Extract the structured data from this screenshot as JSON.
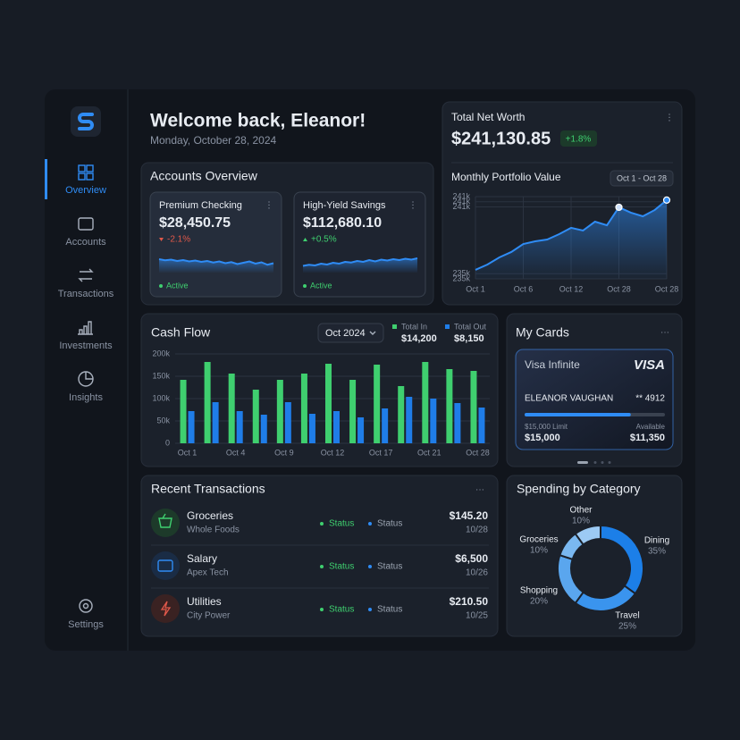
{
  "sidebar": {
    "nav": [
      "Overview",
      "Accounts",
      "Transactions",
      "Investments",
      "Insights"
    ],
    "settings": "Settings"
  },
  "header": {
    "title": "Welcome back, Eleanor!",
    "date": "Monday, October 28, 2024"
  },
  "accounts": {
    "title": "Accounts Overview",
    "items": [
      {
        "name": "Premium Checking",
        "balance": "$28,450.75",
        "change": "-2.1%",
        "status": "Active"
      },
      {
        "name": "High-Yield Savings",
        "balance": "$112,680.10",
        "change": "+0.5%",
        "status": "Active"
      }
    ]
  },
  "net_worth": {
    "label": "Total Net Worth",
    "value": "$241,130.85",
    "change": "+1.8%"
  },
  "transactions": {
    "title": "Recent Transactions",
    "rows": [
      {
        "name": "Groceries",
        "merchant": "Whole Foods",
        "status": [
          "Status",
          "Status"
        ],
        "amount": "$145.20",
        "date": "10/28"
      },
      {
        "name": "Salary",
        "merchant": "Apex Tech",
        "status": [
          "Status",
          "Status"
        ],
        "amount": "$6,500",
        "date": "10/26"
      },
      {
        "name": "Utilities",
        "merchant": "City Power",
        "status": [
          "Status",
          "Status"
        ],
        "amount": "$210.50",
        "date": "10/25"
      }
    ]
  },
  "card": {
    "title": "My Cards",
    "name": "Visa Infinite",
    "brand": "VISA",
    "holder": "ELEANOR VAUGHAN",
    "number": "** 4912",
    "limit_caption": "$15,000 Limit",
    "limit": {
      "value": 15000,
      "label": "$15,000"
    },
    "available_caption": "Available",
    "available": {
      "value": 11350,
      "label": "$11,350"
    }
  },
  "chart_data": [
    {
      "type": "area",
      "title": "Monthly Portfolio Value",
      "range": "Oct 1 - Oct 28",
      "categories": [
        "Oct 1",
        null,
        null,
        null,
        "Oct 6",
        null,
        null,
        null,
        "Oct 12",
        null,
        null,
        null,
        "Oct 28",
        null,
        null,
        null,
        "Oct 28"
      ],
      "values": [
        235700,
        236110,
        236670,
        237090,
        237710,
        237920,
        238060,
        238480,
        238970,
        238760,
        239450,
        239170,
        240570,
        240150,
        239870,
        240360,
        241130
      ],
      "color": "#2f8cf5",
      "ylim": [
        235000,
        241400
      ],
      "yticks": [
        {
          "value": 241400,
          "label": "241k"
        },
        {
          "value": 241000,
          "label": "241k"
        },
        {
          "value": 240600,
          "label": "241k"
        },
        {
          "value": 235400,
          "label": "235k"
        },
        {
          "value": 235000,
          "label": "235k"
        }
      ],
      "grid": true
    },
    {
      "type": "bar",
      "title": "Cash Flow",
      "period": "Oct 2024",
      "categories": [
        "Oct 1",
        null,
        "Oct 4",
        null,
        "Oct 9",
        null,
        "Oct 12",
        null,
        "Oct 17",
        null,
        "Oct 21",
        null,
        "Oct 28"
      ],
      "series": [
        {
          "name": "Total In",
          "total": "$14,200",
          "color": "#3fcf6f",
          "values": [
            142000,
            182000,
            156000,
            120000,
            142000,
            156000,
            178000,
            142000,
            176000,
            128000,
            182000,
            166000,
            162000
          ]
        },
        {
          "name": "Total Out",
          "total": "$8,150",
          "color": "#1f7de8",
          "values": [
            72000,
            92000,
            72000,
            64000,
            92000,
            66000,
            72000,
            58000,
            78000,
            104000,
            100000,
            90000,
            80000
          ]
        }
      ],
      "ylim": [
        0,
        200000
      ],
      "yticks": [
        0,
        {
          "value": 50000,
          "label": "50k"
        },
        {
          "value": 100000,
          "label": "100k"
        },
        {
          "value": 150000,
          "label": "150k"
        },
        {
          "value": 200000,
          "label": "200k"
        }
      ],
      "grid": true
    },
    {
      "type": "donut",
      "title": "Spending by Category",
      "categories": [
        "Dining",
        "Travel",
        "Shopping",
        "Groceries",
        "Other"
      ],
      "values": [
        35,
        25,
        20,
        10,
        10
      ],
      "value_labels": [
        "35%",
        "25%",
        "20%",
        "10%",
        "10%"
      ],
      "colors": [
        "#1c7fe8",
        "#3a94ee",
        "#5aa6ee",
        "#7ab8f0",
        "#9ccaf4"
      ]
    },
    {
      "type": "sparkline",
      "values": [
        60,
        55,
        58,
        52,
        56,
        50,
        54,
        48,
        52,
        45,
        50,
        42,
        47,
        38,
        44,
        50,
        40,
        46,
        35,
        42
      ],
      "color": "#2f8cf5",
      "ylim": [
        0,
        100
      ]
    },
    {
      "type": "sparkline",
      "values": [
        30,
        35,
        32,
        40,
        36,
        44,
        40,
        48,
        45,
        52,
        48,
        56,
        50,
        58,
        54,
        60,
        56,
        62,
        58,
        64
      ],
      "color": "#2f8cf5",
      "ylim": [
        0,
        100
      ]
    }
  ]
}
